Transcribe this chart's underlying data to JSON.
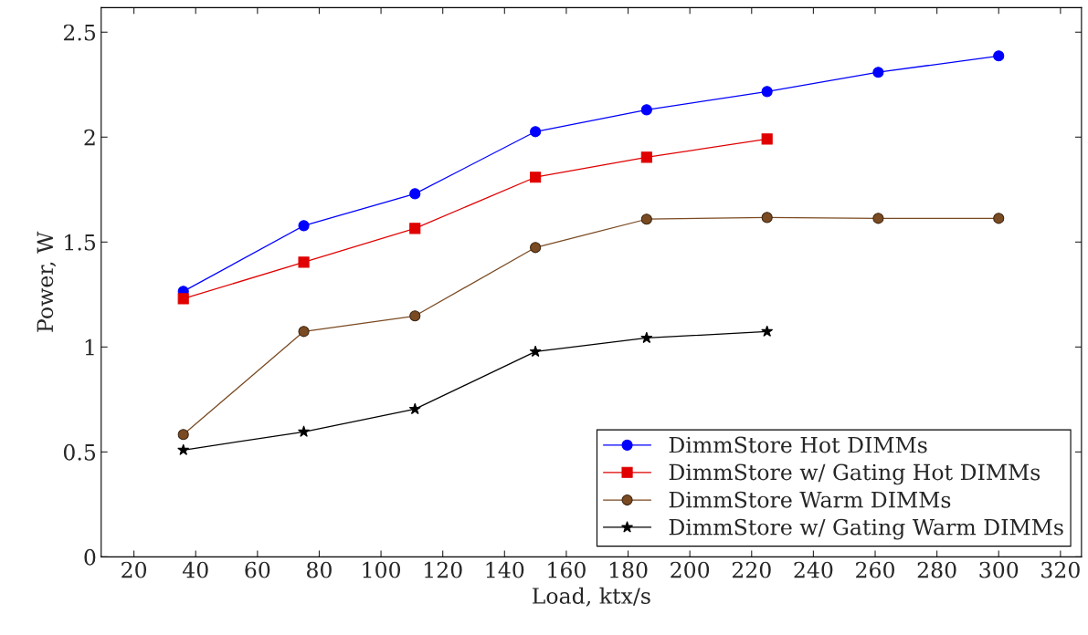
{
  "chart_data": {
    "type": "line",
    "xlabel": "Load, ktx/s",
    "ylabel": "Power, W",
    "x": [
      36,
      75,
      111,
      150,
      186,
      225,
      261,
      300
    ],
    "series": [
      {
        "name": "DimmStore Hot DIMMs",
        "color": "#0000ff",
        "marker": "circle",
        "values": [
          1.265,
          1.578,
          1.73,
          2.026,
          2.13,
          2.217,
          2.309,
          2.387
        ]
      },
      {
        "name": "DimmStore w/ Gating Hot DIMMs",
        "color": "#e00000",
        "marker": "square",
        "values": [
          1.23,
          1.404,
          1.565,
          1.809,
          1.904,
          1.991,
          null,
          null
        ]
      },
      {
        "name": "DimmStore Warm DIMMs",
        "color": "#7a4a22",
        "marker": "circle",
        "values": [
          0.583,
          1.074,
          1.148,
          1.474,
          1.609,
          1.617,
          1.613,
          1.613
        ]
      },
      {
        "name": "DimmStore w/ Gating Warm DIMMs",
        "color": "#000000",
        "marker": "star",
        "values": [
          0.509,
          0.596,
          0.704,
          0.978,
          1.043,
          1.074,
          null,
          null
        ]
      }
    ],
    "xlim": [
      9.4,
      326.8
    ],
    "ylim": [
      0,
      2.617
    ],
    "xticks": [
      20,
      40,
      60,
      80,
      100,
      120,
      140,
      160,
      180,
      200,
      220,
      240,
      260,
      280,
      300,
      320
    ],
    "yticks": [
      0,
      {
        "value": 0.5,
        "label": "0.5"
      },
      1,
      {
        "value": 1.5,
        "label": "1.5"
      },
      2,
      {
        "value": 2.5,
        "label": "2.5"
      }
    ],
    "grid": false,
    "legend": "bottom right",
    "line_style": "solid"
  }
}
